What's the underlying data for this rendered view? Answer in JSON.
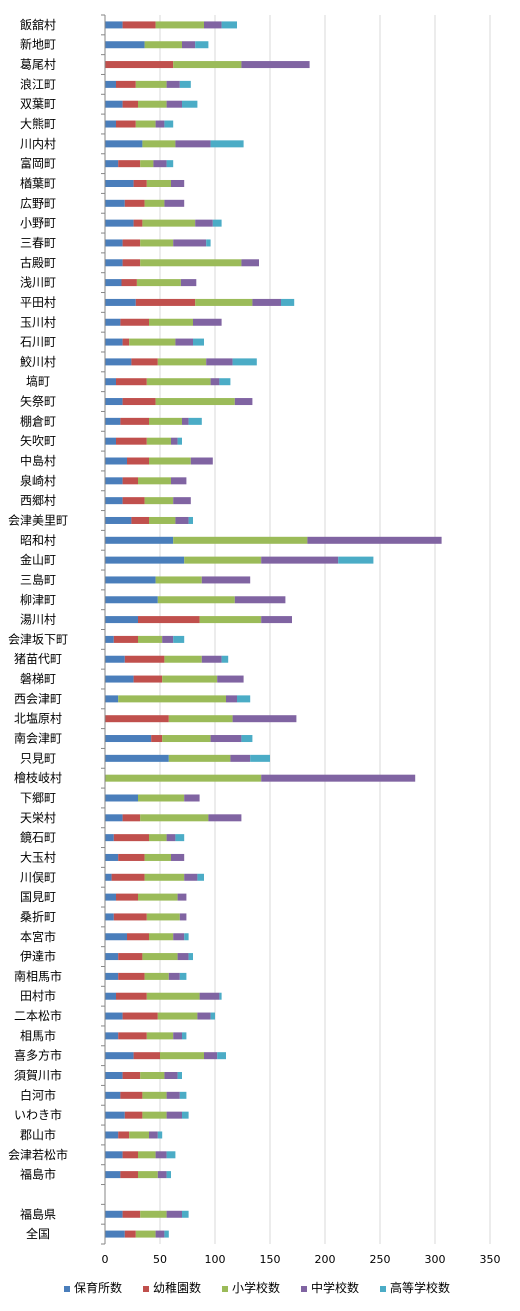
{
  "chart_data": {
    "type": "bar",
    "orientation": "horizontal",
    "stacked": true,
    "categories": [
      "飯舘村",
      "新地町",
      "葛尾村",
      "浪江町",
      "双葉町",
      "大熊町",
      "川内村",
      "富岡町",
      "楢葉町",
      "広野町",
      "小野町",
      "三春町",
      "古殿町",
      "浅川町",
      "平田村",
      "玉川村",
      "石川町",
      "鮫川村",
      "塙町",
      "矢祭町",
      "棚倉町",
      "矢吹町",
      "中島村",
      "泉崎村",
      "西郷村",
      "会津美里町",
      "昭和村",
      "金山町",
      "三島町",
      "柳津町",
      "湯川村",
      "会津坂下町",
      "猪苗代町",
      "磐梯町",
      "西会津町",
      "北塩原村",
      "南会津町",
      "只見町",
      "檜枝岐村",
      "下郷町",
      "天栄村",
      "鏡石町",
      "大玉村",
      "川俣町",
      "国見町",
      "桑折町",
      "本宮市",
      "伊達市",
      "南相馬市",
      "田村市",
      "二本松市",
      "相馬市",
      "喜多方市",
      "須賀川市",
      "白河市",
      "いわき市",
      "郡山市",
      "会津若松市",
      "福島市",
      "",
      "福島県",
      "全国"
    ],
    "series": [
      {
        "name": "保育所数",
        "color": "#4a7ebb",
        "values": [
          16,
          36,
          0,
          10,
          16,
          10,
          34,
          12,
          26,
          18,
          26,
          16,
          16,
          15,
          28,
          14,
          16,
          24,
          10,
          16,
          14,
          10,
          20,
          16,
          16,
          24,
          62,
          72,
          46,
          48,
          30,
          8,
          18,
          26,
          12,
          0,
          42,
          58,
          0,
          30,
          16,
          8,
          12,
          6,
          10,
          8,
          20,
          12,
          12,
          10,
          16,
          12,
          26,
          16,
          14,
          18,
          12,
          16,
          14,
          0,
          16,
          18
        ]
      },
      {
        "name": "幼稚園数",
        "color": "#c0504d",
        "values": [
          30,
          0,
          62,
          18,
          14,
          18,
          0,
          20,
          12,
          18,
          8,
          16,
          16,
          14,
          54,
          26,
          6,
          24,
          28,
          30,
          26,
          28,
          20,
          14,
          20,
          16,
          0,
          0,
          0,
          0,
          56,
          22,
          36,
          26,
          0,
          58,
          10,
          0,
          0,
          0,
          16,
          32,
          24,
          30,
          20,
          30,
          20,
          22,
          24,
          28,
          32,
          26,
          24,
          16,
          20,
          16,
          10,
          14,
          16,
          0,
          16,
          10
        ]
      },
      {
        "name": "小学校数",
        "color": "#9bbb59",
        "values": [
          44,
          34,
          62,
          28,
          26,
          18,
          30,
          12,
          22,
          18,
          48,
          30,
          92,
          40,
          52,
          40,
          42,
          44,
          58,
          72,
          30,
          22,
          38,
          30,
          26,
          24,
          122,
          70,
          42,
          70,
          56,
          22,
          34,
          50,
          98,
          58,
          44,
          56,
          142,
          42,
          62,
          16,
          24,
          36,
          36,
          30,
          22,
          32,
          22,
          48,
          36,
          24,
          40,
          22,
          22,
          22,
          18,
          16,
          18,
          0,
          24,
          18
        ]
      },
      {
        "name": "中学校数",
        "color": "#8064a2",
        "values": [
          16,
          12,
          62,
          12,
          14,
          8,
          32,
          12,
          12,
          18,
          16,
          30,
          16,
          14,
          26,
          26,
          16,
          24,
          8,
          16,
          6,
          6,
          20,
          14,
          16,
          12,
          122,
          70,
          44,
          46,
          28,
          10,
          18,
          24,
          10,
          58,
          28,
          18,
          140,
          14,
          30,
          8,
          12,
          12,
          8,
          6,
          10,
          10,
          10,
          18,
          12,
          8,
          12,
          12,
          12,
          14,
          8,
          10,
          8,
          0,
          14,
          8
        ]
      },
      {
        "name": "高等学校数",
        "color": "#4bacc6",
        "values": [
          14,
          12,
          0,
          10,
          14,
          8,
          30,
          6,
          0,
          0,
          8,
          4,
          0,
          0,
          12,
          0,
          10,
          22,
          10,
          0,
          12,
          4,
          0,
          0,
          0,
          4,
          0,
          32,
          0,
          0,
          0,
          10,
          6,
          0,
          12,
          0,
          10,
          18,
          0,
          0,
          0,
          8,
          0,
          6,
          0,
          0,
          4,
          4,
          6,
          2,
          4,
          4,
          8,
          4,
          6,
          6,
          4,
          8,
          4,
          0,
          6,
          4
        ]
      }
    ],
    "xlim": [
      0,
      350
    ],
    "xticks": [
      "0",
      "50",
      "100",
      "150",
      "200",
      "250",
      "300",
      "350"
    ],
    "legend_position": "bottom",
    "grid": "vertical"
  }
}
